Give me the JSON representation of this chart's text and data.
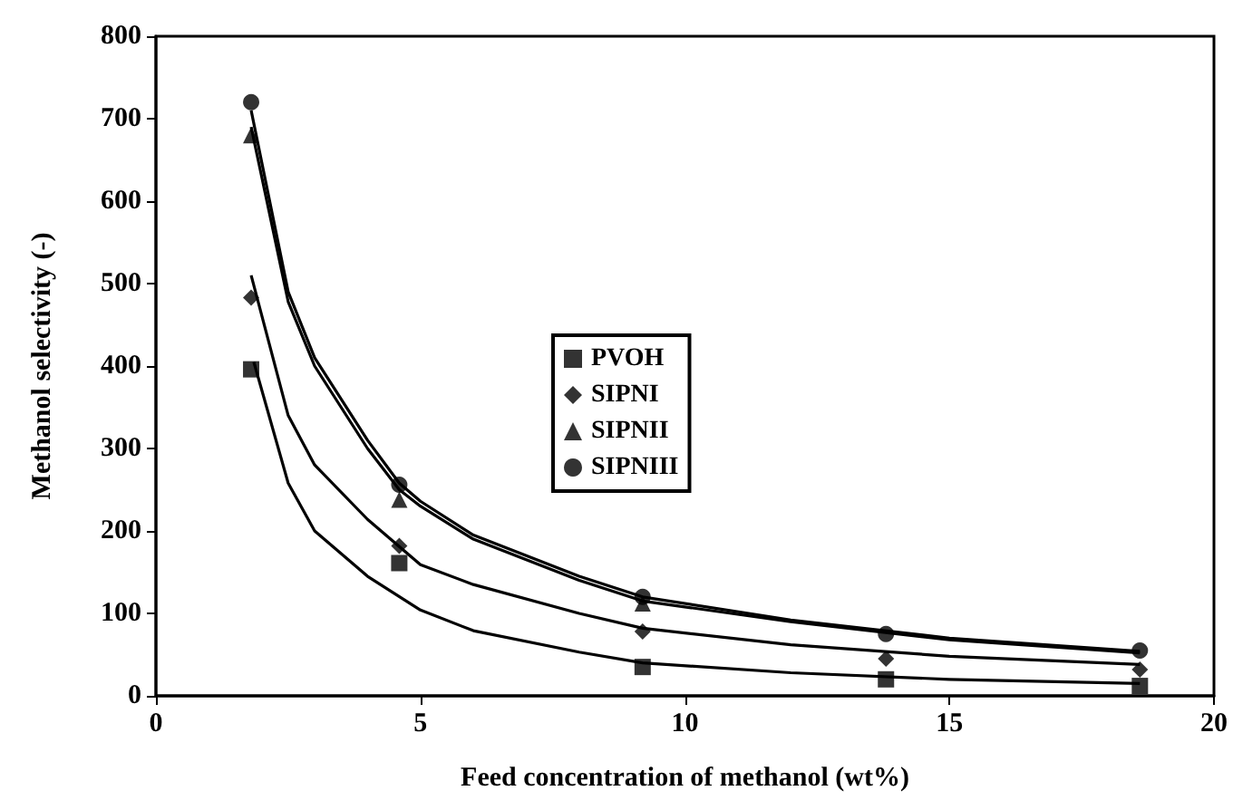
{
  "chart_data": {
    "type": "scatter",
    "xlabel": "Feed concentration of methanol (wt%)",
    "ylabel": "Methanol selectivity (-)",
    "xlim": [
      0,
      20
    ],
    "xticks": [
      0,
      5,
      10,
      15,
      20
    ],
    "ylim": [
      0,
      800
    ],
    "yticks": [
      0,
      100,
      200,
      300,
      400,
      500,
      600,
      700,
      800
    ],
    "grid": false,
    "legend": "center",
    "x": [
      1.8,
      4.6,
      9.2,
      13.8,
      18.6
    ],
    "series": [
      {
        "name": "PVOH",
        "color": "#000000",
        "marker": "square",
        "values": [
          396,
          161,
          35,
          20,
          12
        ]
      },
      {
        "name": "SIPNI",
        "color": "#000000",
        "marker": "diamond",
        "values": [
          483,
          182,
          78,
          45,
          32
        ]
      },
      {
        "name": "SIPNII",
        "color": "#000000",
        "marker": "triangle",
        "values": [
          680,
          238,
          112,
          null,
          null
        ]
      },
      {
        "name": "SIPNIII",
        "color": "#000000",
        "marker": "circle",
        "values": [
          720,
          256,
          120,
          75,
          55
        ]
      },
      {
        "type": "line",
        "color": "#000000",
        "marker": "none",
        "x": [
          1.85,
          2.5,
          3,
          4,
          5,
          6,
          8,
          9.2,
          12,
          15,
          18.6
        ],
        "values": [
          405,
          258,
          200,
          145,
          104,
          79,
          53,
          40,
          28,
          20,
          15
        ]
      },
      {
        "type": "line",
        "color": "#000000",
        "marker": "none",
        "x": [
          1.8,
          2.5,
          3,
          4,
          5,
          6,
          8,
          9.2,
          12,
          15,
          18.6
        ],
        "values": [
          510,
          340,
          280,
          214,
          159,
          135,
          100,
          82,
          62,
          48,
          38
        ]
      },
      {
        "type": "line",
        "color": "#000000",
        "marker": "none",
        "x": [
          1.8,
          2.5,
          3,
          4,
          4.6,
          5,
          6,
          8,
          9.2,
          12,
          15,
          18.6
        ],
        "values": [
          690,
          478,
          400,
          300,
          250,
          230,
          190,
          140,
          115,
          90,
          68,
          52
        ]
      },
      {
        "type": "line",
        "color": "#000000",
        "marker": "none",
        "x": [
          1.8,
          2.5,
          3,
          4,
          4.6,
          5,
          6,
          8,
          9.2,
          12,
          15,
          18.6
        ],
        "values": [
          710,
          490,
          410,
          310,
          258,
          236,
          195,
          145,
          120,
          92,
          70,
          54
        ]
      }
    ]
  }
}
